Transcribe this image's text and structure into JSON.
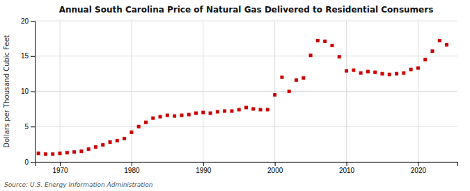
{
  "chart_data": {
    "type": "scatter",
    "title": "Annual South Carolina Price of Natural Gas Delivered to Residential Consumers",
    "ylabel": "Dollars per Thousand Cubic Feet",
    "annotations": [
      "Source: U.S. Energy Information Administration"
    ],
    "color": "#cc0000",
    "marker": "square",
    "grid": true,
    "xlim": [
      1966.5,
      2025.5
    ],
    "xticks": [
      1970,
      1980,
      1990,
      2000,
      2010,
      2020
    ],
    "ylim": [
      0,
      20
    ],
    "yticks": [
      0,
      5,
      10,
      15,
      20
    ],
    "x": [
      1967,
      1968,
      1969,
      1970,
      1971,
      1972,
      1973,
      1974,
      1975,
      1976,
      1977,
      1978,
      1979,
      1980,
      1981,
      1982,
      1983,
      1984,
      1985,
      1986,
      1987,
      1988,
      1989,
      1990,
      1991,
      1992,
      1993,
      1994,
      1995,
      1996,
      1997,
      1998,
      1999,
      2000,
      2001,
      2002,
      2003,
      2004,
      2005,
      2006,
      2007,
      2008,
      2009,
      2010,
      2011,
      2012,
      2013,
      2014,
      2015,
      2016,
      2017,
      2018,
      2019,
      2020,
      2021,
      2022,
      2023,
      2024
    ],
    "values": [
      1.2,
      1.1,
      1.1,
      1.2,
      1.3,
      1.4,
      1.5,
      1.8,
      2.1,
      2.4,
      2.8,
      3.0,
      3.3,
      4.2,
      5.0,
      5.6,
      6.2,
      6.4,
      6.6,
      6.5,
      6.6,
      6.7,
      6.9,
      7.0,
      6.9,
      7.1,
      7.2,
      7.2,
      7.4,
      7.7,
      7.5,
      7.4,
      7.4,
      9.5,
      12.0,
      10.0,
      11.6,
      11.9,
      15.1,
      17.2,
      17.1,
      16.5,
      14.9,
      12.9,
      13.0,
      12.6,
      12.8,
      12.7,
      12.5,
      12.4,
      12.5,
      12.6,
      13.1,
      13.3,
      14.5,
      15.7,
      17.2,
      16.6
    ]
  }
}
